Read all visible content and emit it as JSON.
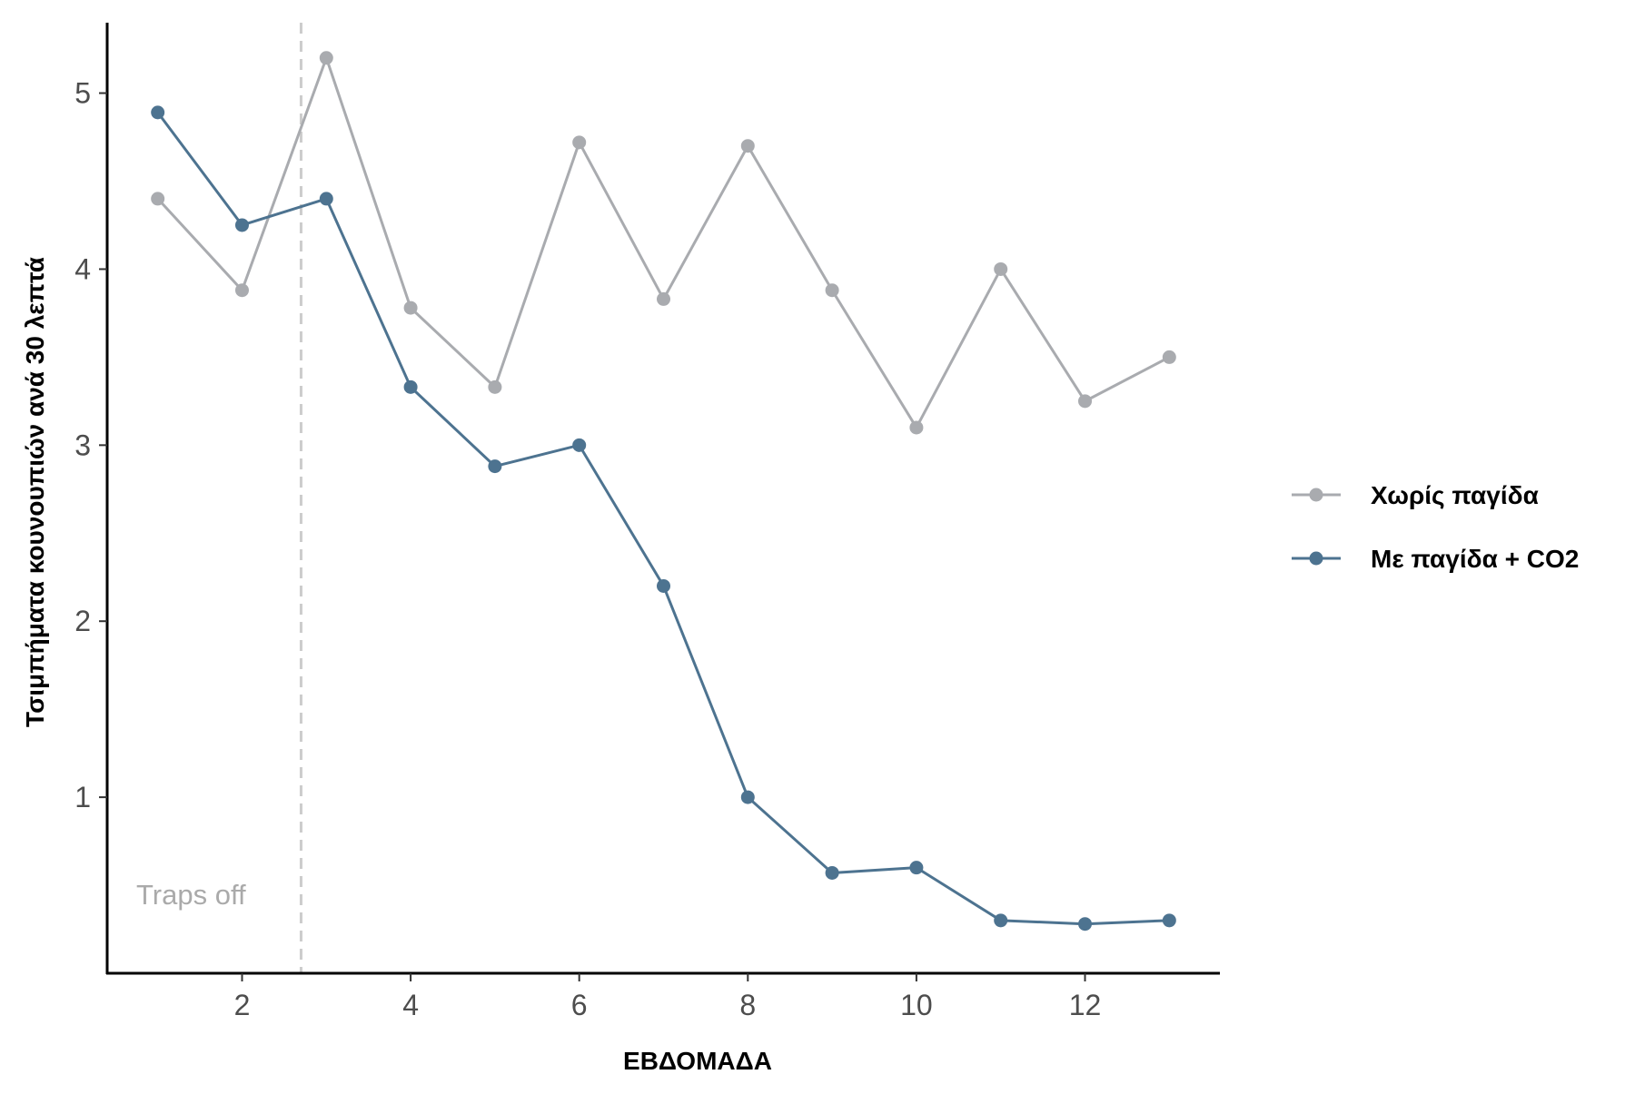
{
  "chart_data": {
    "type": "line",
    "xlabel": "ΕΒΔΟΜΑΔΑ",
    "ylabel": "Τσιμπήματα κουνουπιών ανά 30 λεπτά",
    "xlim": [
      0.4,
      13.6
    ],
    "ylim": [
      0.0,
      5.4
    ],
    "x_ticks": [
      2,
      4,
      6,
      8,
      10,
      12
    ],
    "y_ticks": [
      1,
      2,
      3,
      4,
      5
    ],
    "grid": false,
    "legend_position": "right",
    "vline": {
      "x": 2.7,
      "style": "dashed",
      "color": "#cccccc"
    },
    "annotation": {
      "text": "Traps off",
      "x": 1.2,
      "y": 0.45,
      "color": "#aaaaaa"
    },
    "x": [
      1,
      2,
      3,
      4,
      5,
      6,
      7,
      8,
      9,
      10,
      11,
      12,
      13
    ],
    "series": [
      {
        "name": "Χωρίς παγίδα",
        "color": "#a9abaf",
        "values": [
          4.4,
          3.88,
          5.2,
          3.78,
          3.33,
          4.72,
          3.83,
          4.7,
          3.88,
          3.1,
          4.0,
          3.25,
          3.5
        ]
      },
      {
        "name": "Με παγίδα + CO2",
        "color": "#4d7390",
        "values": [
          4.89,
          4.25,
          4.4,
          3.33,
          2.88,
          3.0,
          2.2,
          1.0,
          0.57,
          0.6,
          0.3,
          0.28,
          0.3
        ]
      }
    ]
  }
}
